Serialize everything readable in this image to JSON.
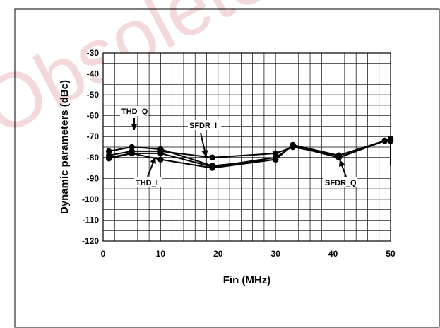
{
  "watermark": {
    "text": "Obsolete P"
  },
  "chart_data": {
    "type": "line",
    "title": "",
    "xlabel": "Fin (MHz)",
    "ylabel": "Dynamic parameters (dBc)",
    "xlim": [
      0,
      50
    ],
    "ylim": [
      -120,
      -30
    ],
    "xticks": [
      0,
      10,
      20,
      30,
      40,
      50
    ],
    "yticks": [
      -30,
      -40,
      -50,
      -60,
      -70,
      -80,
      -90,
      -100,
      -110,
      -120
    ],
    "grid": true,
    "series": [
      {
        "x": [
          1,
          5,
          10,
          19,
          30,
          33,
          41,
          49,
          50
        ],
        "y": [
          -77,
          -75,
          -76,
          -84,
          -81,
          -74,
          -79,
          -72,
          -72
        ]
      },
      {
        "x": [
          1,
          5,
          10,
          19,
          30,
          33,
          41,
          49,
          50
        ],
        "y": [
          -80,
          -78,
          -78,
          -84.5,
          -80,
          -74.5,
          -80,
          -72,
          -71.5
        ]
      },
      {
        "x": [
          1,
          5,
          10,
          19,
          30,
          33,
          41,
          49,
          50
        ],
        "y": [
          -79,
          -77,
          -77,
          -80,
          -78,
          -75,
          -79,
          -72,
          -71
        ]
      },
      {
        "x": [
          1,
          5,
          10,
          19,
          30,
          33,
          41,
          49,
          50
        ],
        "y": [
          -80.5,
          -78,
          -81,
          -85,
          -81,
          -74,
          -80,
          -72,
          -72
        ]
      }
    ],
    "annotations": [
      {
        "label": "THD_Q",
        "x": 5,
        "y": -75
      },
      {
        "label": "SFDR_I",
        "x": 18,
        "y": -80
      },
      {
        "label": "THD_I",
        "x": 10,
        "y": -77
      },
      {
        "label": "SFDR_Q",
        "x": 42,
        "y": -80
      }
    ]
  }
}
